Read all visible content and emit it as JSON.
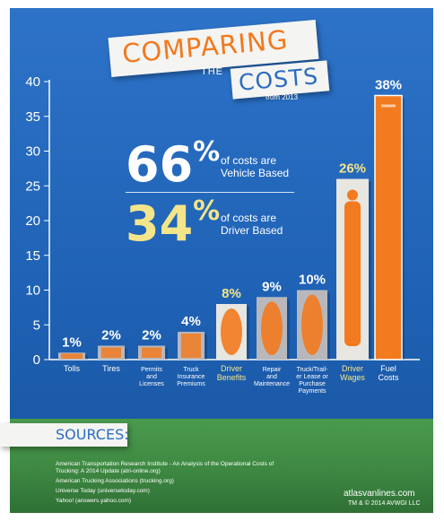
{
  "header": {
    "title_line1": "COMPARING",
    "title_the": "THE",
    "title_line2": "COSTS",
    "subtitle": "from 2013"
  },
  "highlights": {
    "vehicle": {
      "value": "66",
      "symbol": "%",
      "label_line1": "of costs are",
      "label_line2": "Vehicle Based"
    },
    "driver": {
      "value": "34",
      "symbol": "%",
      "label_line1": "of costs are",
      "label_line2": "Driver Based"
    }
  },
  "chart_data": {
    "type": "bar",
    "categories": [
      "Tolls",
      "Tires",
      "Permits and Licenses",
      "Truck Insurance Premiums",
      "Driver Benefits",
      "Repair and Maintenance",
      "Truck/Trailer Lease or Purchase Payments",
      "Driver Wages",
      "Fuel Costs"
    ],
    "category_lines": [
      [
        "Tolls"
      ],
      [
        "Tires"
      ],
      [
        "Permits",
        "and",
        "Licenses"
      ],
      [
        "Truck",
        "Insurance",
        "Premiums"
      ],
      [
        "Driver",
        "Benefits"
      ],
      [
        "Repair",
        "and",
        "Maintenance"
      ],
      [
        "Truck/Trail-",
        "er Lease or",
        "Purchase",
        "Payments"
      ],
      [
        "Driver",
        "Wages"
      ],
      [
        "Fuel",
        "Costs"
      ]
    ],
    "values": [
      1,
      2,
      2,
      4,
      8,
      9,
      10,
      26,
      38
    ],
    "value_labels": [
      "1%",
      "2%",
      "2%",
      "4%",
      "8%",
      "9%",
      "10%",
      "26%",
      "38%"
    ],
    "ylim": [
      0,
      40
    ],
    "yticks": [
      0,
      5,
      10,
      15,
      20,
      25,
      30,
      35,
      40
    ],
    "grid": false,
    "colors": {
      "vehicle_bar": "#b8b8bc",
      "driver_bar": "#e8e6e0",
      "fuel_bar": "#f27a1f",
      "icon": "#f27a1f",
      "label_white": "#ffffff",
      "label_yellow": "#f4e58a"
    },
    "bar_icons": [
      "toll-barrier-icon",
      "tire-icon",
      "permit-stack-icon",
      "umbrella-icon",
      "caduceus-icon",
      "wrench-icon",
      "truck-icon",
      "driver-silhouette-icon",
      "fuel-pump-icon"
    ]
  },
  "sources": {
    "title": "SOURCES:",
    "items": [
      "American Transportation Research Institute - An Analysis of the Operational Costs of Trucking: A 2014 Update (atri-online.org)",
      "American Trucking Associations (trucking.org)",
      "Universe Today (universetoday.com)",
      "Yahoo! (answers.yahoo.com)"
    ]
  },
  "footer": {
    "brand": "atlasvanlines.com",
    "copyright": "TM & © 2014 AVWGI LLC"
  }
}
